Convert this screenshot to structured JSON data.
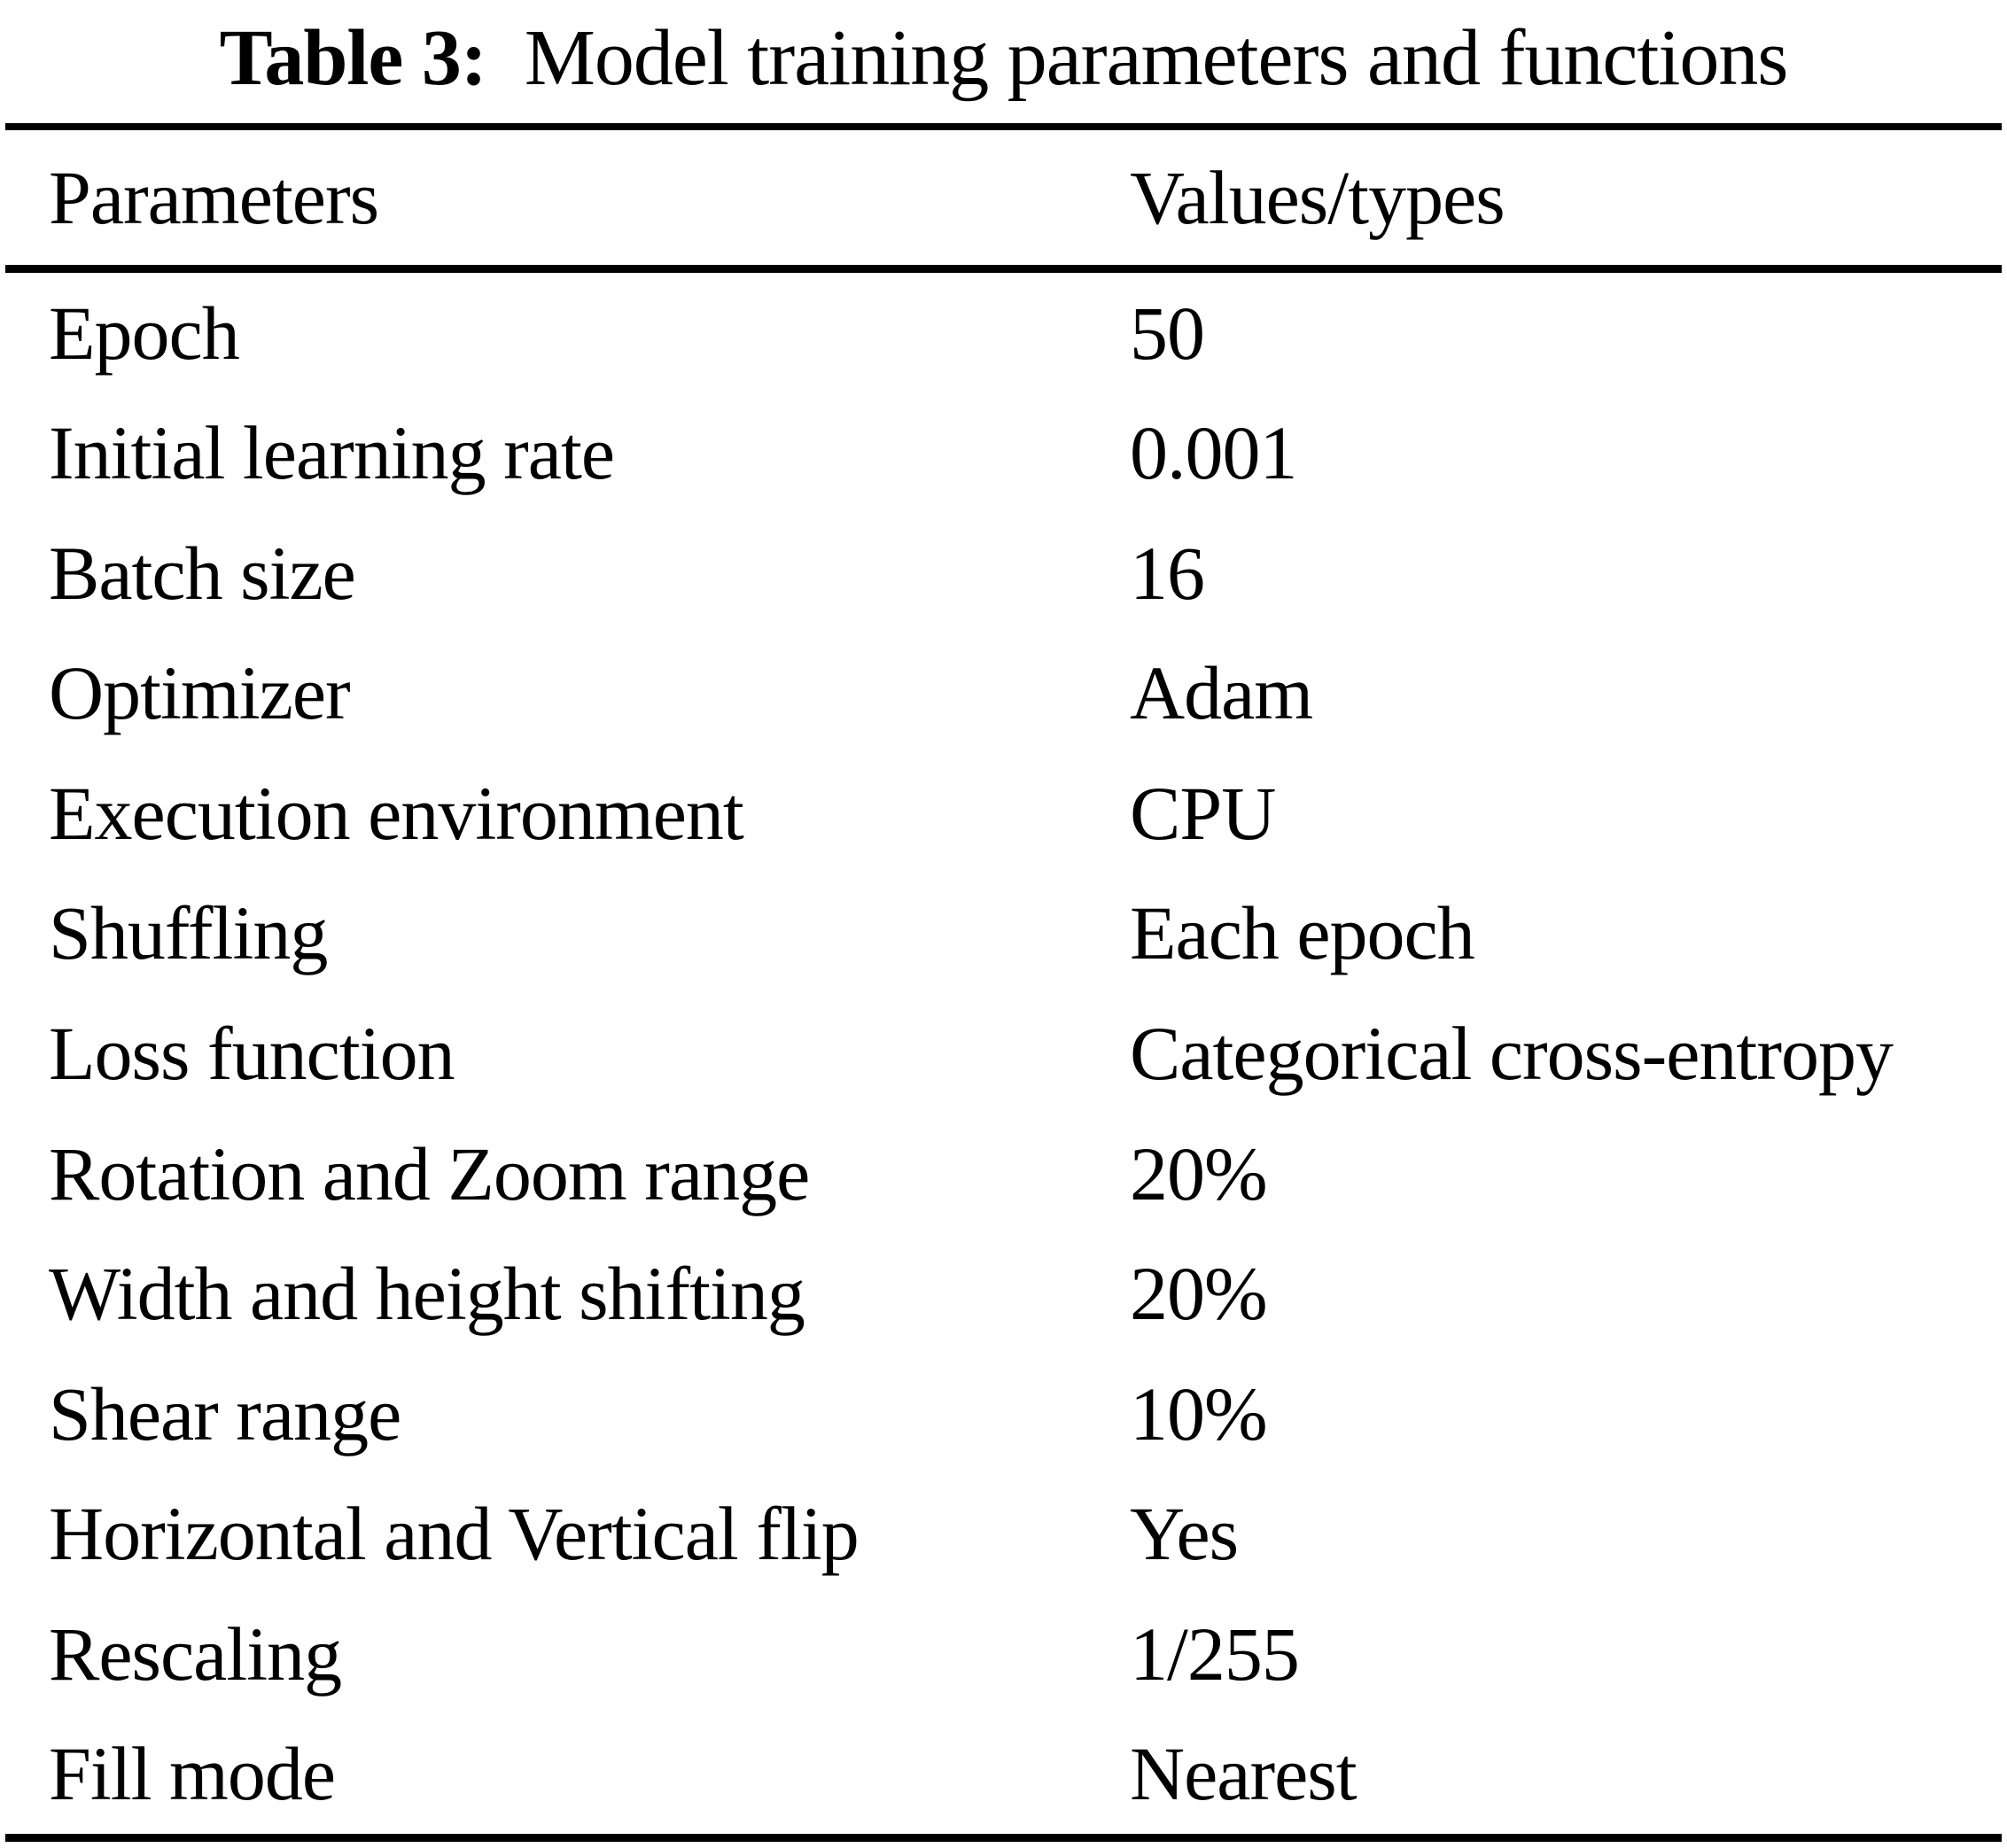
{
  "table": {
    "caption": {
      "label": "Table 3:",
      "text": "  Model training parameters and functions"
    },
    "columns": [
      "Parameters",
      "Values/types"
    ],
    "rows": [
      {
        "parameter": "Epoch",
        "value": "50"
      },
      {
        "parameter": "Initial learning rate",
        "value": "0.001"
      },
      {
        "parameter": "Batch size",
        "value": "16"
      },
      {
        "parameter": "Optimizer",
        "value": "Adam"
      },
      {
        "parameter": "Execution environment",
        "value": "CPU"
      },
      {
        "parameter": "Shuffling",
        "value": "Each epoch"
      },
      {
        "parameter": "Loss function",
        "value": "Categorical cross-entropy"
      },
      {
        "parameter": "Rotation and Zoom range",
        "value": "20%"
      },
      {
        "parameter": "Width and height shifting",
        "value": "20%"
      },
      {
        "parameter": "Shear range",
        "value": "10%"
      },
      {
        "parameter": "Horizontal and Vertical flip",
        "value": "Yes"
      },
      {
        "parameter": "Rescaling",
        "value": "1/255"
      },
      {
        "parameter": "Fill mode",
        "value": "Nearest"
      }
    ],
    "text_color": "#000000",
    "background_color": "#ffffff"
  }
}
